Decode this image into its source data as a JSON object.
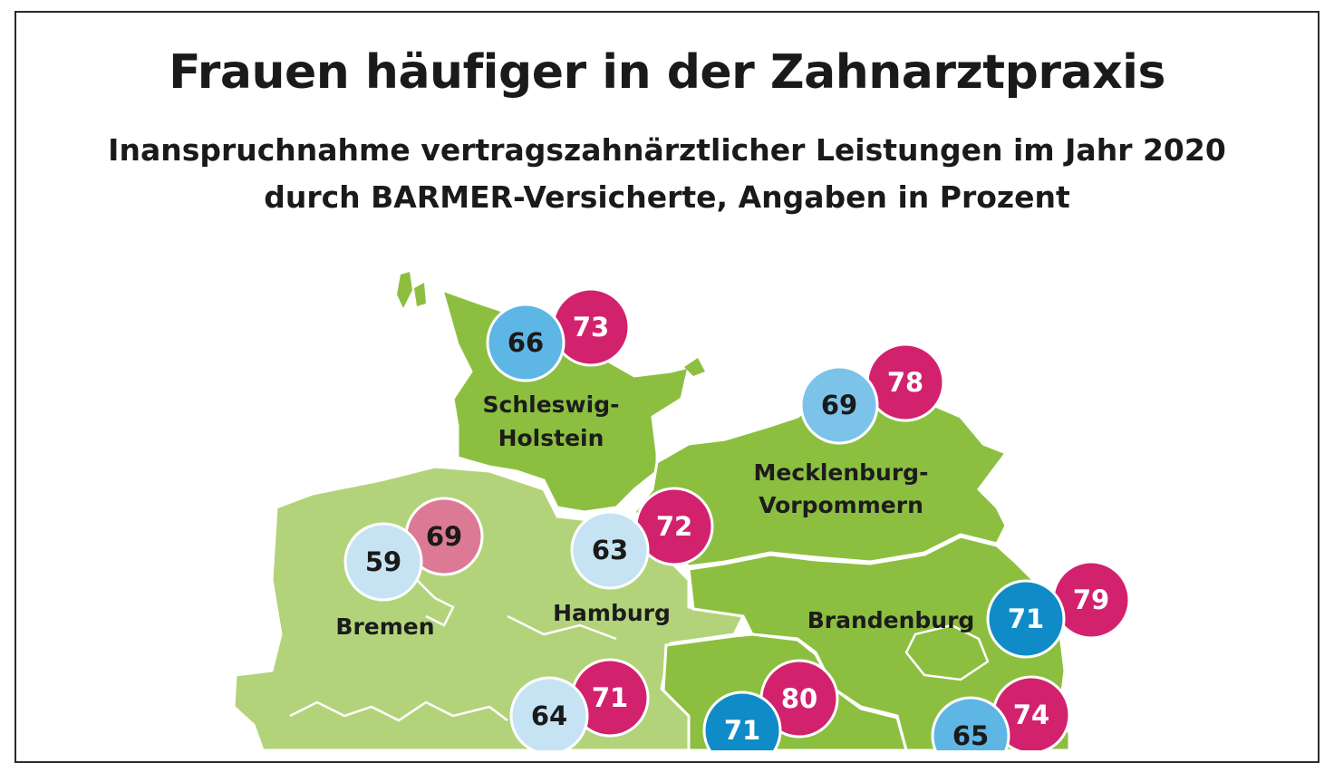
{
  "title": "Frauen häufiger in der Zahnarztpraxis",
  "subtitle_line1": "Inanspruchnahme vertragszahnärztlicher Leistungen im Jahr 2020",
  "subtitle_line2": "durch BARMER-Versicherte, Angaben in Prozent",
  "colors": {
    "map_dark": "#8cbf3f",
    "map_light": "#b3d37a",
    "border": "#ffffff",
    "men_light": "#c5e3f3",
    "men_dark": "#0f8cc8",
    "women": "#d2226e",
    "women_light": "#dc7a95"
  },
  "regions": [
    {
      "name_line1": "Schleswig-",
      "name_line2": "Holstein",
      "men": "66",
      "women": "73"
    },
    {
      "name_line1": "Mecklenburg-",
      "name_line2": "Vorpommern",
      "men": "69",
      "women": "78"
    },
    {
      "name_line1": "Bremen",
      "name_line2": "",
      "men": "59",
      "women": "69"
    },
    {
      "name_line1": "Hamburg",
      "name_line2": "",
      "men": "63",
      "women": "72"
    },
    {
      "name_line1": "Brandenburg",
      "name_line2": "",
      "men": "71",
      "women": "79"
    },
    {
      "name_line1": "",
      "name_line2": "",
      "men": "64",
      "women": "71"
    },
    {
      "name_line1": "",
      "name_line2": "",
      "men": "71",
      "women": "80"
    },
    {
      "name_line1": "",
      "name_line2": "",
      "men": "65",
      "women": "74"
    }
  ]
}
